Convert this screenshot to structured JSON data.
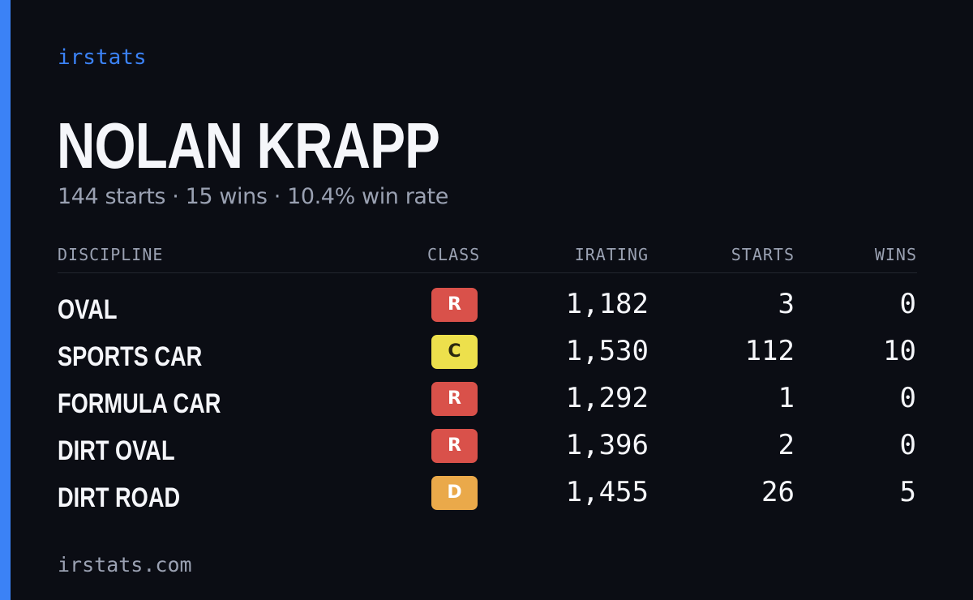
{
  "brand": "irstats",
  "player": {
    "name": "NOLAN KRAPP",
    "summary": "144 starts · 15 wins · 10.4% win rate"
  },
  "table": {
    "headers": {
      "discipline": "DISCIPLINE",
      "class": "CLASS",
      "irating": "IRATING",
      "starts": "STARTS",
      "wins": "WINS"
    },
    "rows": [
      {
        "discipline": "OVAL",
        "class": "R",
        "class_color": "#d9514a",
        "irating": "1,182",
        "starts": "3",
        "wins": "0"
      },
      {
        "discipline": "SPORTS CAR",
        "class": "C",
        "class_color": "#ede04c",
        "irating": "1,530",
        "starts": "112",
        "wins": "10"
      },
      {
        "discipline": "FORMULA CAR",
        "class": "R",
        "class_color": "#d9514a",
        "irating": "1,292",
        "starts": "1",
        "wins": "0"
      },
      {
        "discipline": "DIRT OVAL",
        "class": "R",
        "class_color": "#d9514a",
        "irating": "1,396",
        "starts": "2",
        "wins": "0"
      },
      {
        "discipline": "DIRT ROAD",
        "class": "D",
        "class_color": "#eaa94a",
        "irating": "1,455",
        "starts": "26",
        "wins": "5"
      }
    ]
  },
  "footer": {
    "url": "irstats.com"
  },
  "colors": {
    "background": "#0b0d14",
    "accent": "#3b82f6",
    "muted_text": "#9aa1b2",
    "class_r": "#d9514a",
    "class_c": "#ede04c",
    "class_d": "#eaa94a"
  }
}
